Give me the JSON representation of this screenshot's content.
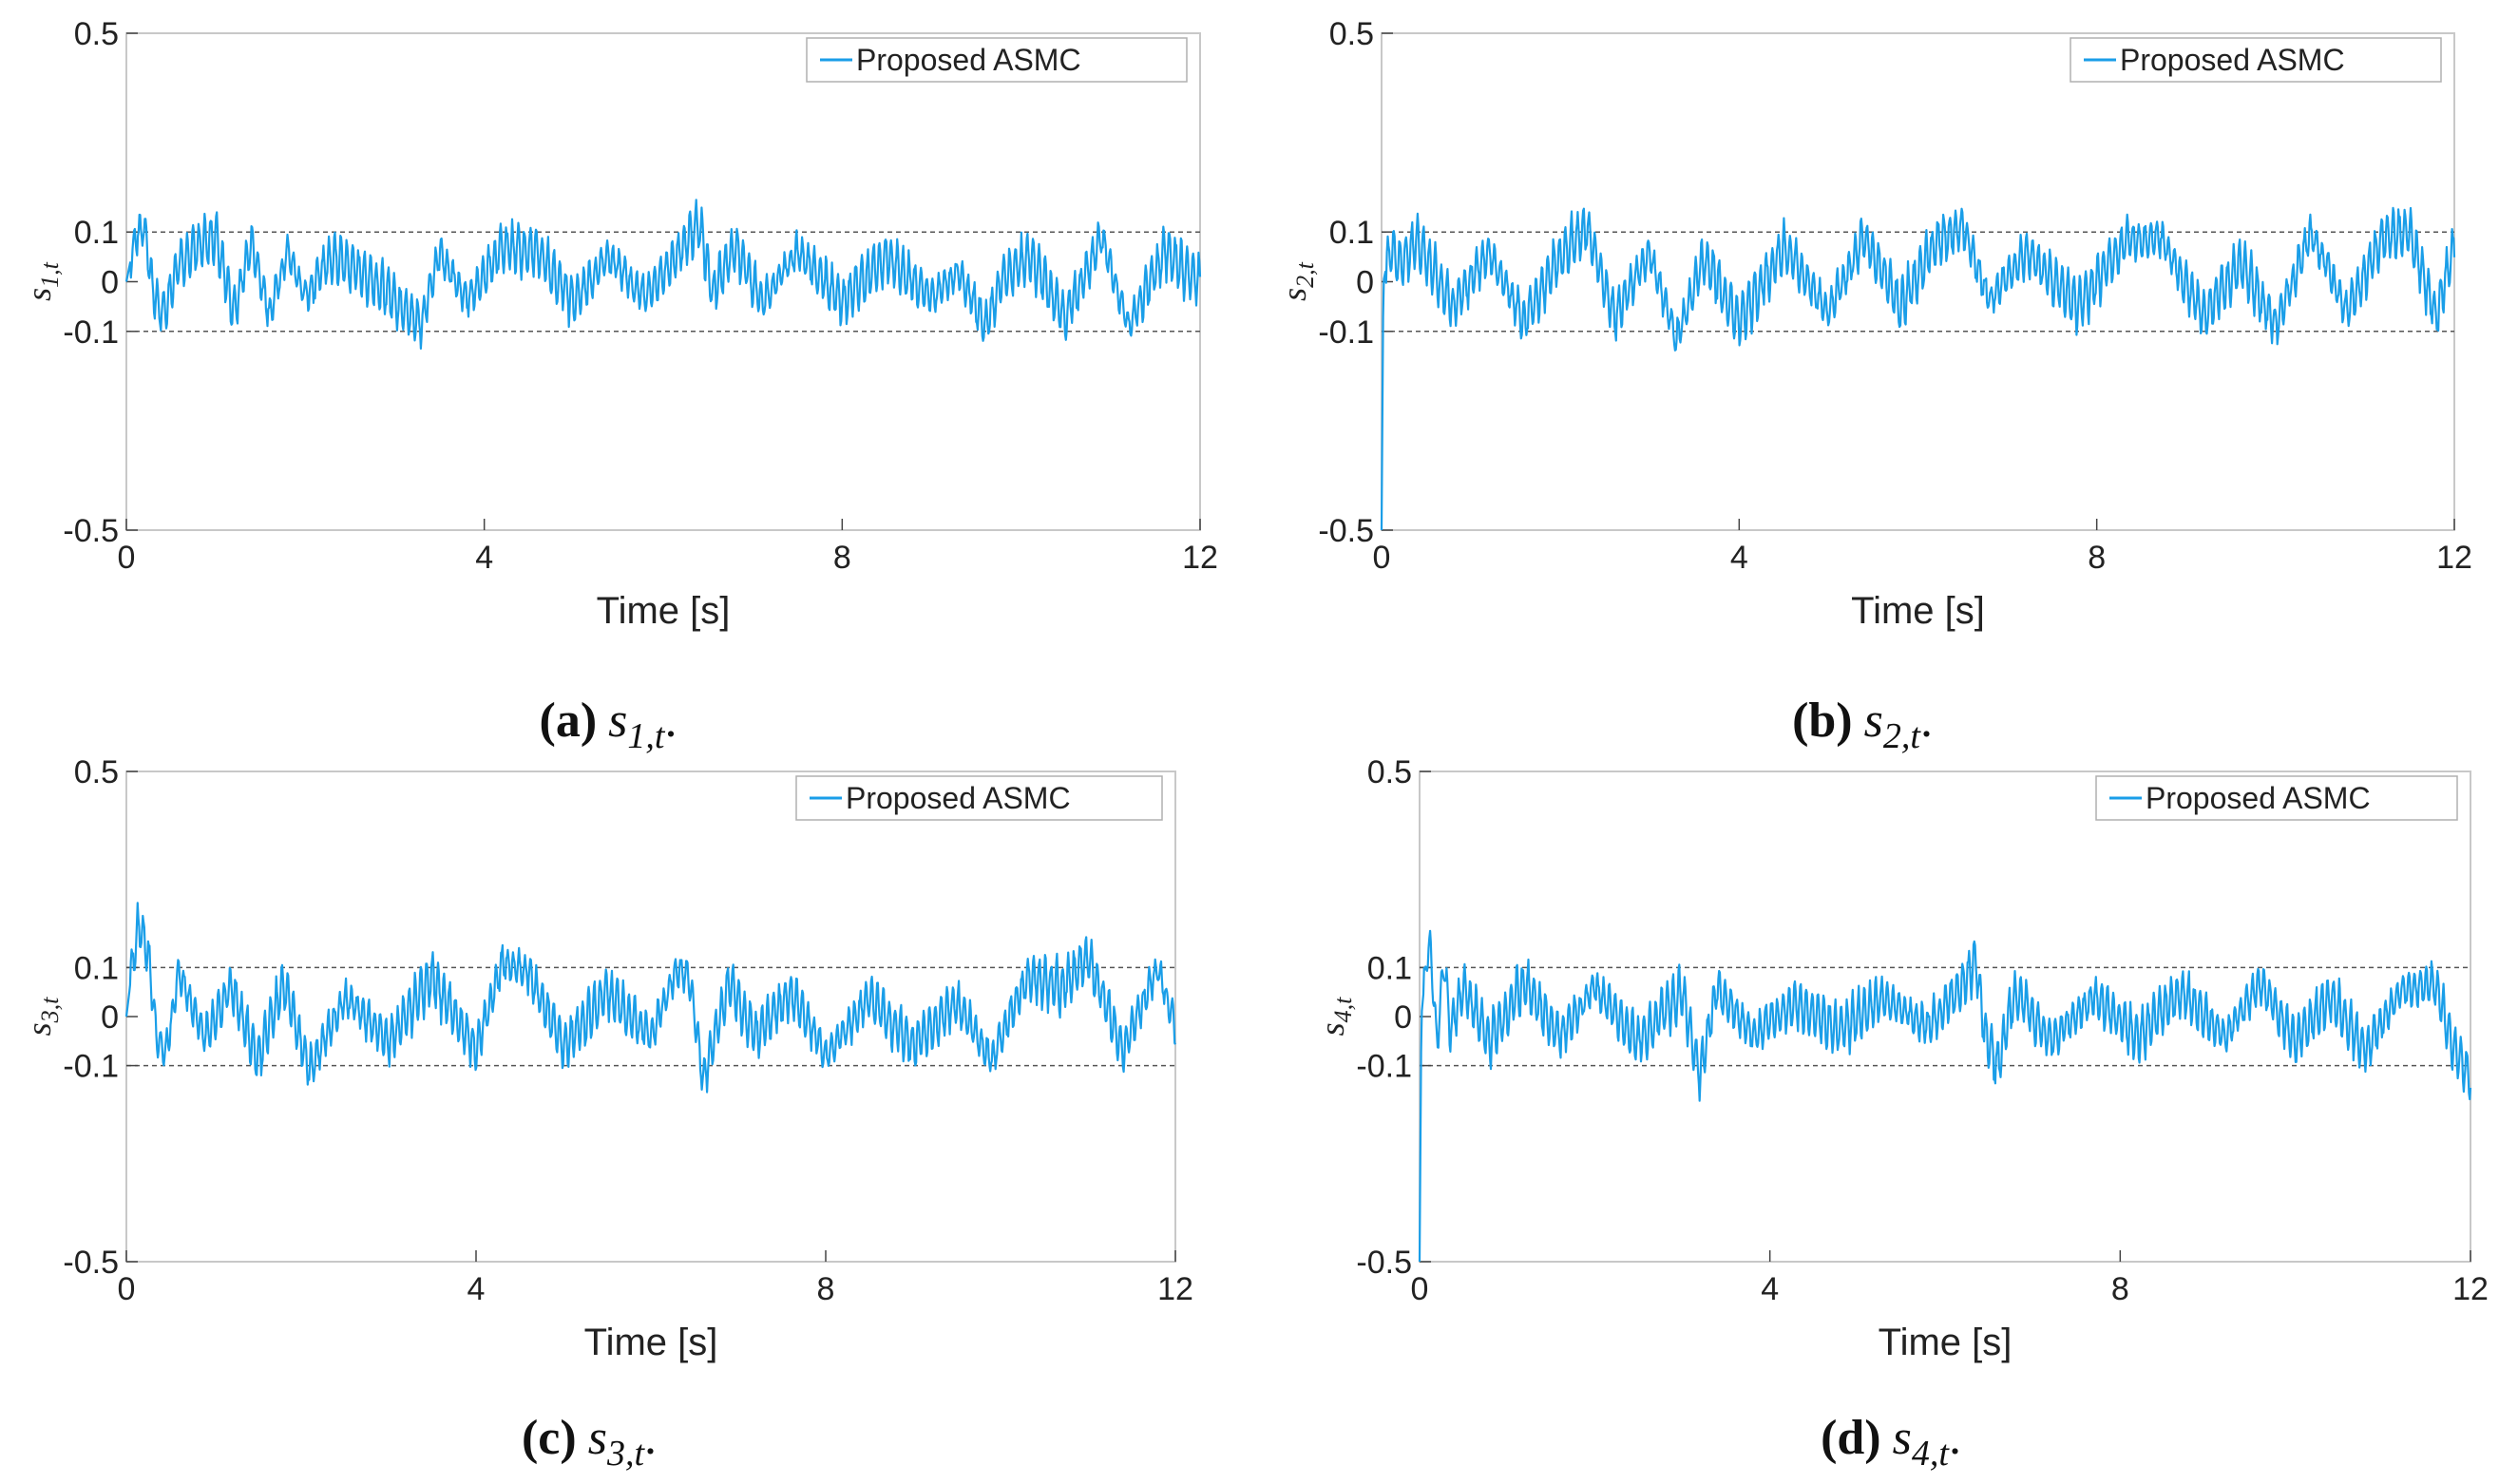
{
  "figure": {
    "panels": [
      "a",
      "b",
      "c",
      "d"
    ]
  },
  "chart_data": [
    {
      "id": "a",
      "type": "line",
      "caption": {
        "label": "(a)",
        "symbol": "s",
        "subscript": "1,t",
        "suffix": "."
      },
      "ylabel": {
        "symbol": "s",
        "subscript": "1,t"
      },
      "xlabel": "Time [s]",
      "xlim": [
        0,
        12
      ],
      "ylim": [
        -0.5,
        0.5
      ],
      "xticks": [
        0,
        4,
        8,
        12
      ],
      "xtick_labels": [
        "0",
        "4",
        "8",
        "12"
      ],
      "yticks": [
        -0.5,
        -0.1,
        0,
        0.1,
        0.5
      ],
      "ytick_labels": [
        "-0.5",
        "-0.1",
        "0",
        "0.1",
        "0.5"
      ],
      "reference_lines": [
        0.1,
        -0.1
      ],
      "legend": {
        "position": "top-right",
        "entries": [
          "Proposed ASMC"
        ]
      },
      "color": "#1a9ee8",
      "series": [
        {
          "name": "Proposed ASMC",
          "x": [
            0,
            0.1,
            0.2,
            0.3,
            0.4,
            0.6,
            0.8,
            1.0,
            1.2,
            1.4,
            1.6,
            1.8,
            2.0,
            2.3,
            2.6,
            2.9,
            3.1,
            3.3,
            3.5,
            3.8,
            4.2,
            4.6,
            5.0,
            5.4,
            5.8,
            6.1,
            6.3,
            6.4,
            6.55,
            6.8,
            7.1,
            7.5,
            8.0,
            8.5,
            9.0,
            9.3,
            9.6,
            9.8,
            10.1,
            10.5,
            10.9,
            11.2,
            11.6,
            12.0
          ],
          "y": [
            0.0,
            0.09,
            0.11,
            -0.02,
            -0.07,
            0.04,
            0.07,
            0.09,
            -0.06,
            0.08,
            -0.07,
            0.06,
            -0.03,
            0.05,
            0.02,
            -0.02,
            -0.06,
            -0.08,
            0.06,
            -0.04,
            0.07,
            0.06,
            -0.04,
            0.05,
            -0.03,
            0.04,
            0.09,
            0.12,
            -0.02,
            0.07,
            -0.04,
            0.06,
            -0.04,
            0.05,
            -0.03,
            0.02,
            -0.09,
            0.01,
            0.05,
            -0.07,
            0.09,
            -0.09,
            0.06,
            0.0
          ]
        }
      ]
    },
    {
      "id": "b",
      "type": "line",
      "caption": {
        "label": "(b)",
        "symbol": "s",
        "subscript": "2,t",
        "suffix": "."
      },
      "ylabel": {
        "symbol": "s",
        "subscript": "2,t"
      },
      "xlabel": "Time [s]",
      "xlim": [
        0,
        12
      ],
      "ylim": [
        -0.5,
        0.5
      ],
      "xticks": [
        0,
        4,
        8,
        12
      ],
      "xtick_labels": [
        "0",
        "4",
        "8",
        "12"
      ],
      "yticks": [
        -0.5,
        -0.1,
        0,
        0.1,
        0.5
      ],
      "ytick_labels": [
        "-0.5",
        "-0.1",
        "0",
        "0.1",
        "0.5"
      ],
      "reference_lines": [
        0.1,
        -0.1
      ],
      "legend": {
        "position": "top-right",
        "entries": [
          "Proposed ASMC"
        ]
      },
      "color": "#1a9ee8",
      "series": [
        {
          "name": "Proposed ASMC",
          "x": [
            0,
            0.02,
            0.1,
            0.2,
            0.4,
            0.8,
            1.2,
            1.6,
            2.0,
            2.3,
            2.6,
            3.0,
            3.3,
            3.6,
            4.0,
            4.5,
            5.0,
            5.4,
            5.8,
            6.2,
            6.5,
            6.8,
            7.2,
            7.8,
            8.3,
            8.7,
            9.2,
            9.6,
            10.0,
            10.4,
            10.8,
            11.2,
            11.5,
            11.8,
            12.0
          ],
          "y": [
            -0.5,
            0.0,
            0.07,
            0.03,
            0.08,
            -0.05,
            0.06,
            -0.08,
            0.05,
            0.11,
            -0.07,
            0.06,
            -0.12,
            0.05,
            -0.08,
            0.07,
            -0.06,
            0.09,
            -0.05,
            0.08,
            0.11,
            -0.04,
            0.06,
            -0.05,
            0.08,
            0.09,
            -0.07,
            0.04,
            -0.09,
            0.1,
            -0.06,
            0.09,
            0.1,
            -0.07,
            0.08
          ]
        }
      ]
    },
    {
      "id": "c",
      "type": "line",
      "caption": {
        "label": "(c)",
        "symbol": "s",
        "subscript": "3,t",
        "suffix": "."
      },
      "ylabel": {
        "symbol": "s",
        "subscript": "3,t"
      },
      "xlabel": "Time [s]",
      "xlim": [
        0,
        12
      ],
      "ylim": [
        -0.5,
        0.5
      ],
      "xticks": [
        0,
        4,
        8,
        12
      ],
      "xtick_labels": [
        "0",
        "4",
        "8",
        "12"
      ],
      "yticks": [
        -0.5,
        -0.1,
        0,
        0.1,
        0.5
      ],
      "ytick_labels": [
        "-0.5",
        "-0.1",
        "0",
        "0.1",
        "0.5"
      ],
      "reference_lines": [
        0.1,
        -0.1
      ],
      "legend": {
        "position": "top-right",
        "entries": [
          "Proposed ASMC"
        ]
      },
      "color": "#1a9ee8",
      "series": [
        {
          "name": "Proposed ASMC",
          "x": [
            0,
            0.1,
            0.15,
            0.25,
            0.35,
            0.45,
            0.6,
            0.9,
            1.2,
            1.5,
            1.8,
            2.1,
            2.5,
            3.0,
            3.5,
            4.0,
            4.3,
            4.6,
            5.0,
            5.5,
            6.0,
            6.3,
            6.45,
            6.6,
            6.9,
            7.2,
            7.6,
            8.0,
            8.5,
            9.0,
            9.5,
            9.9,
            10.3,
            10.7,
            11.0,
            11.4,
            11.8,
            12.0
          ],
          "y": [
            0.0,
            0.15,
            0.19,
            0.12,
            -0.04,
            -0.08,
            0.09,
            -0.04,
            0.06,
            -0.09,
            0.07,
            -0.11,
            0.04,
            -0.05,
            0.08,
            -0.07,
            0.11,
            0.09,
            -0.06,
            0.05,
            -0.04,
            0.1,
            0.07,
            -0.13,
            0.07,
            -0.04,
            0.05,
            -0.08,
            0.04,
            -0.06,
            0.03,
            -0.09,
            0.08,
            0.06,
            0.12,
            -0.07,
            0.1,
            -0.02
          ]
        }
      ]
    },
    {
      "id": "d",
      "type": "line",
      "caption": {
        "label": "(d)",
        "symbol": "s",
        "subscript": "4,t",
        "suffix": "."
      },
      "ylabel": {
        "symbol": "s",
        "subscript": "4,t"
      },
      "xlabel": "Time [s]",
      "xlim": [
        0,
        12
      ],
      "ylim": [
        -0.5,
        0.5
      ],
      "xticks": [
        0,
        4,
        8,
        12
      ],
      "xtick_labels": [
        "0",
        "4",
        "8",
        "12"
      ],
      "yticks": [
        -0.5,
        -0.1,
        0,
        0.1,
        0.5
      ],
      "ytick_labels": [
        "-0.5",
        "-0.1",
        "0",
        "0.1",
        "0.5"
      ],
      "reference_lines": [
        0.1,
        -0.1
      ],
      "legend": {
        "position": "top-right",
        "entries": [
          "Proposed ASMC"
        ]
      },
      "color": "#1a9ee8",
      "series": [
        {
          "name": "Proposed ASMC",
          "x": [
            0,
            0.02,
            0.08,
            0.12,
            0.2,
            0.28,
            0.35,
            0.5,
            0.8,
            1.2,
            1.6,
            2.0,
            2.5,
            3.0,
            3.2,
            3.4,
            3.8,
            4.3,
            4.8,
            5.3,
            5.8,
            6.2,
            6.35,
            6.45,
            6.6,
            6.8,
            7.2,
            7.7,
            8.2,
            8.7,
            9.2,
            9.6,
            10.0,
            10.4,
            10.8,
            11.2,
            11.6,
            11.8,
            12.0
          ],
          "y": [
            -0.5,
            0.0,
            0.12,
            0.15,
            -0.06,
            0.12,
            -0.03,
            0.06,
            -0.05,
            0.07,
            -0.04,
            0.06,
            -0.05,
            0.05,
            -0.12,
            0.06,
            -0.04,
            0.03,
            -0.03,
            0.04,
            -0.02,
            0.06,
            0.12,
            -0.03,
            -0.1,
            0.05,
            -0.05,
            0.04,
            -0.04,
            0.05,
            -0.04,
            0.07,
            -0.05,
            0.04,
            -0.07,
            0.05,
            0.07,
            -0.06,
            -0.13
          ]
        }
      ]
    }
  ]
}
